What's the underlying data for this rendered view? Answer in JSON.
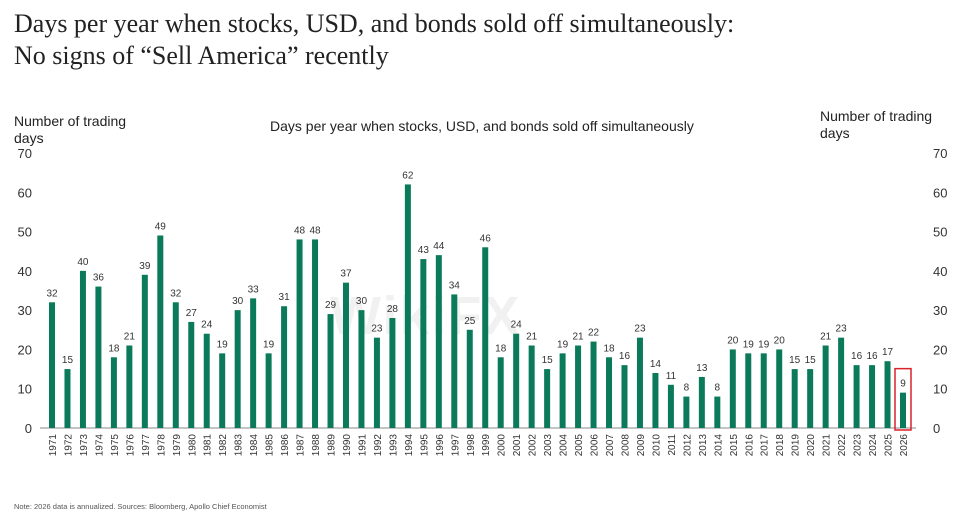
{
  "header": {
    "title_line1": "Days per year when stocks, USD, and bonds sold off simultaneously:",
    "title_line2": "No signs of “Sell America” recently"
  },
  "watermark": "WikiFX",
  "chart_data": {
    "type": "bar",
    "title": "Days per year when stocks, USD, and bonds sold off simultaneously",
    "ylabel_left": "Number of trading days",
    "ylabel_right": "Number of trading days",
    "ylim": [
      0,
      70
    ],
    "yticks": [
      0,
      10,
      20,
      30,
      40,
      50,
      60,
      70
    ],
    "grid": false,
    "bar_color": "#0b7a5a",
    "highlight_color": "#d9222a",
    "highlight_category": "2026",
    "categories": [
      "1971",
      "1972",
      "1973",
      "1974",
      "1975",
      "1976",
      "1977",
      "1978",
      "1979",
      "1980",
      "1981",
      "1982",
      "1983",
      "1984",
      "1985",
      "1986",
      "1987",
      "1988",
      "1989",
      "1990",
      "1991",
      "1992",
      "1993",
      "1994",
      "1995",
      "1996",
      "1997",
      "1998",
      "1999",
      "2000",
      "2001",
      "2002",
      "2003",
      "2004",
      "2005",
      "2006",
      "2007",
      "2008",
      "2009",
      "2010",
      "2011",
      "2012",
      "2013",
      "2014",
      "2015",
      "2016",
      "2017",
      "2018",
      "2019",
      "2020",
      "2021",
      "2022",
      "2023",
      "2024",
      "2025",
      "2026"
    ],
    "values": [
      32,
      15,
      40,
      36,
      18,
      21,
      39,
      49,
      32,
      27,
      24,
      19,
      30,
      33,
      19,
      31,
      48,
      48,
      29,
      37,
      30,
      23,
      28,
      62,
      43,
      44,
      34,
      25,
      46,
      18,
      24,
      21,
      15,
      19,
      21,
      22,
      18,
      16,
      23,
      14,
      11,
      8,
      13,
      8,
      20,
      19,
      19,
      20,
      15,
      15,
      21,
      23,
      16,
      16,
      17,
      9
    ]
  },
  "footer": {
    "note": "Note: 2026 data is annualized. Sources: Bloomberg, Apollo Chief Economist"
  }
}
